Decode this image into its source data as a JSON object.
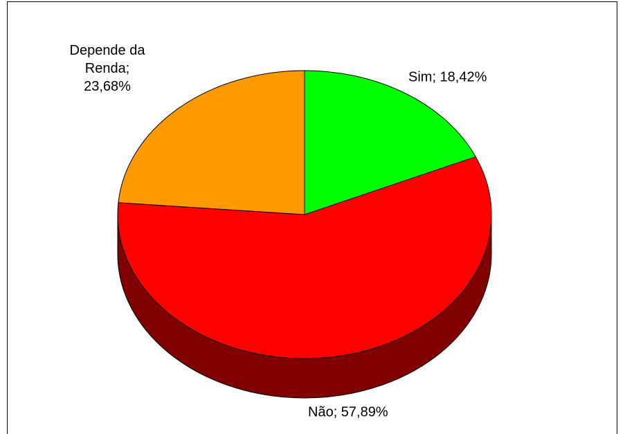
{
  "chart_data": {
    "type": "pie",
    "categories": [
      "Sim",
      "Não",
      "Depende da Renda"
    ],
    "values": [
      18.42,
      57.89,
      23.68
    ],
    "value_labels": [
      "Sim; 18,42%",
      "Não; 57,89%",
      "Depende da Renda; 23,68%"
    ],
    "colors": [
      "#00ff00",
      "#ff0000",
      "#ff9900"
    ]
  }
}
